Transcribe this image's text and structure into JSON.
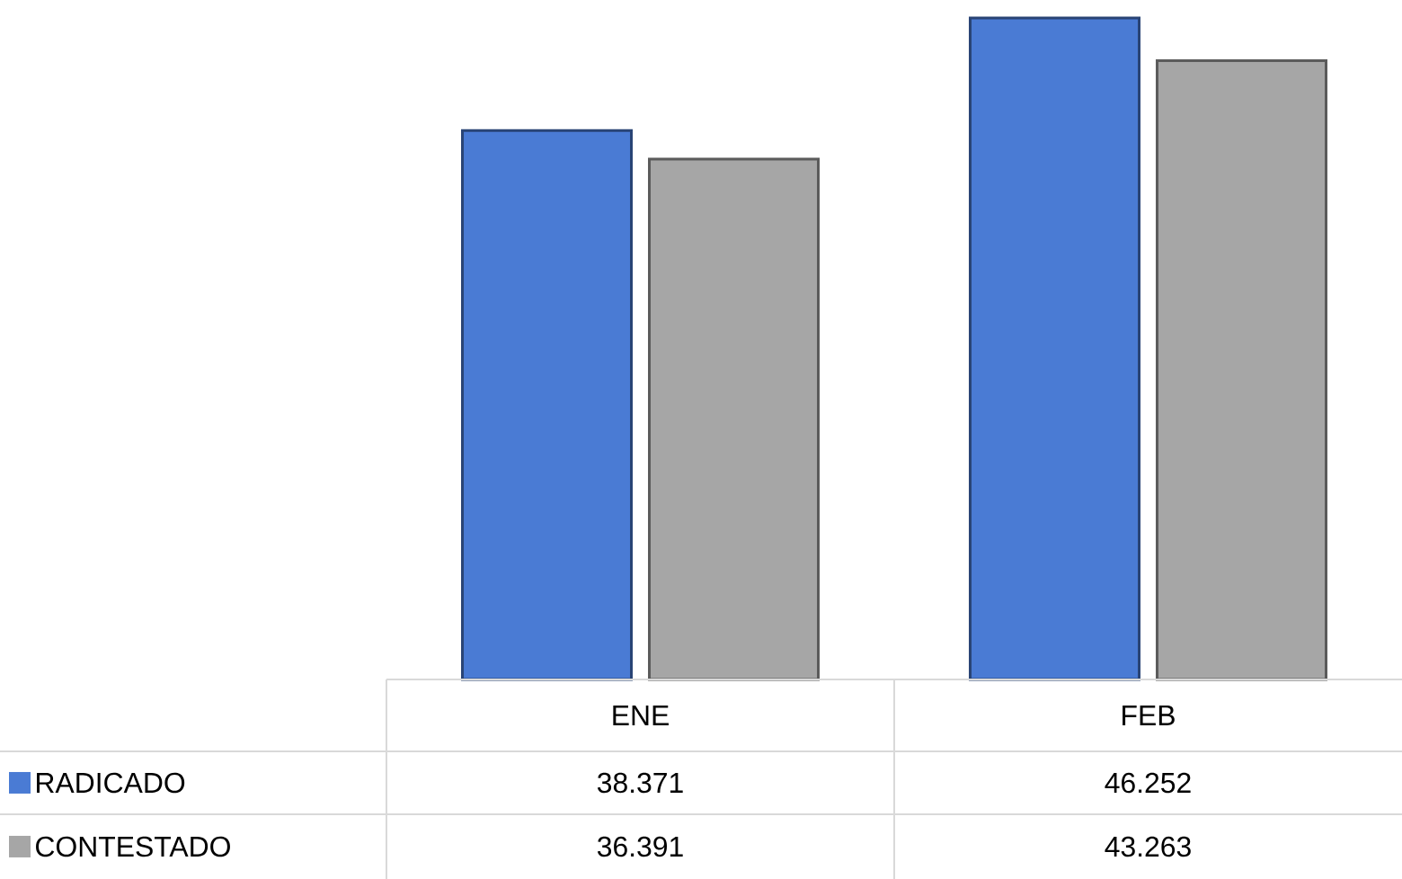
{
  "chart_data": {
    "type": "bar",
    "categories": [
      "ENE",
      "FEB"
    ],
    "series": [
      {
        "name": "RADICADO",
        "color": "#4a7bd4",
        "values": [
          38371,
          46252
        ],
        "value_labels": [
          "38.371",
          "46.252"
        ]
      },
      {
        "name": "CONTESTADO",
        "color": "#a6a6a6",
        "values": [
          36391,
          43263
        ],
        "value_labels": [
          "36.391",
          "43.263"
        ]
      }
    ],
    "legend": "bottom left"
  }
}
